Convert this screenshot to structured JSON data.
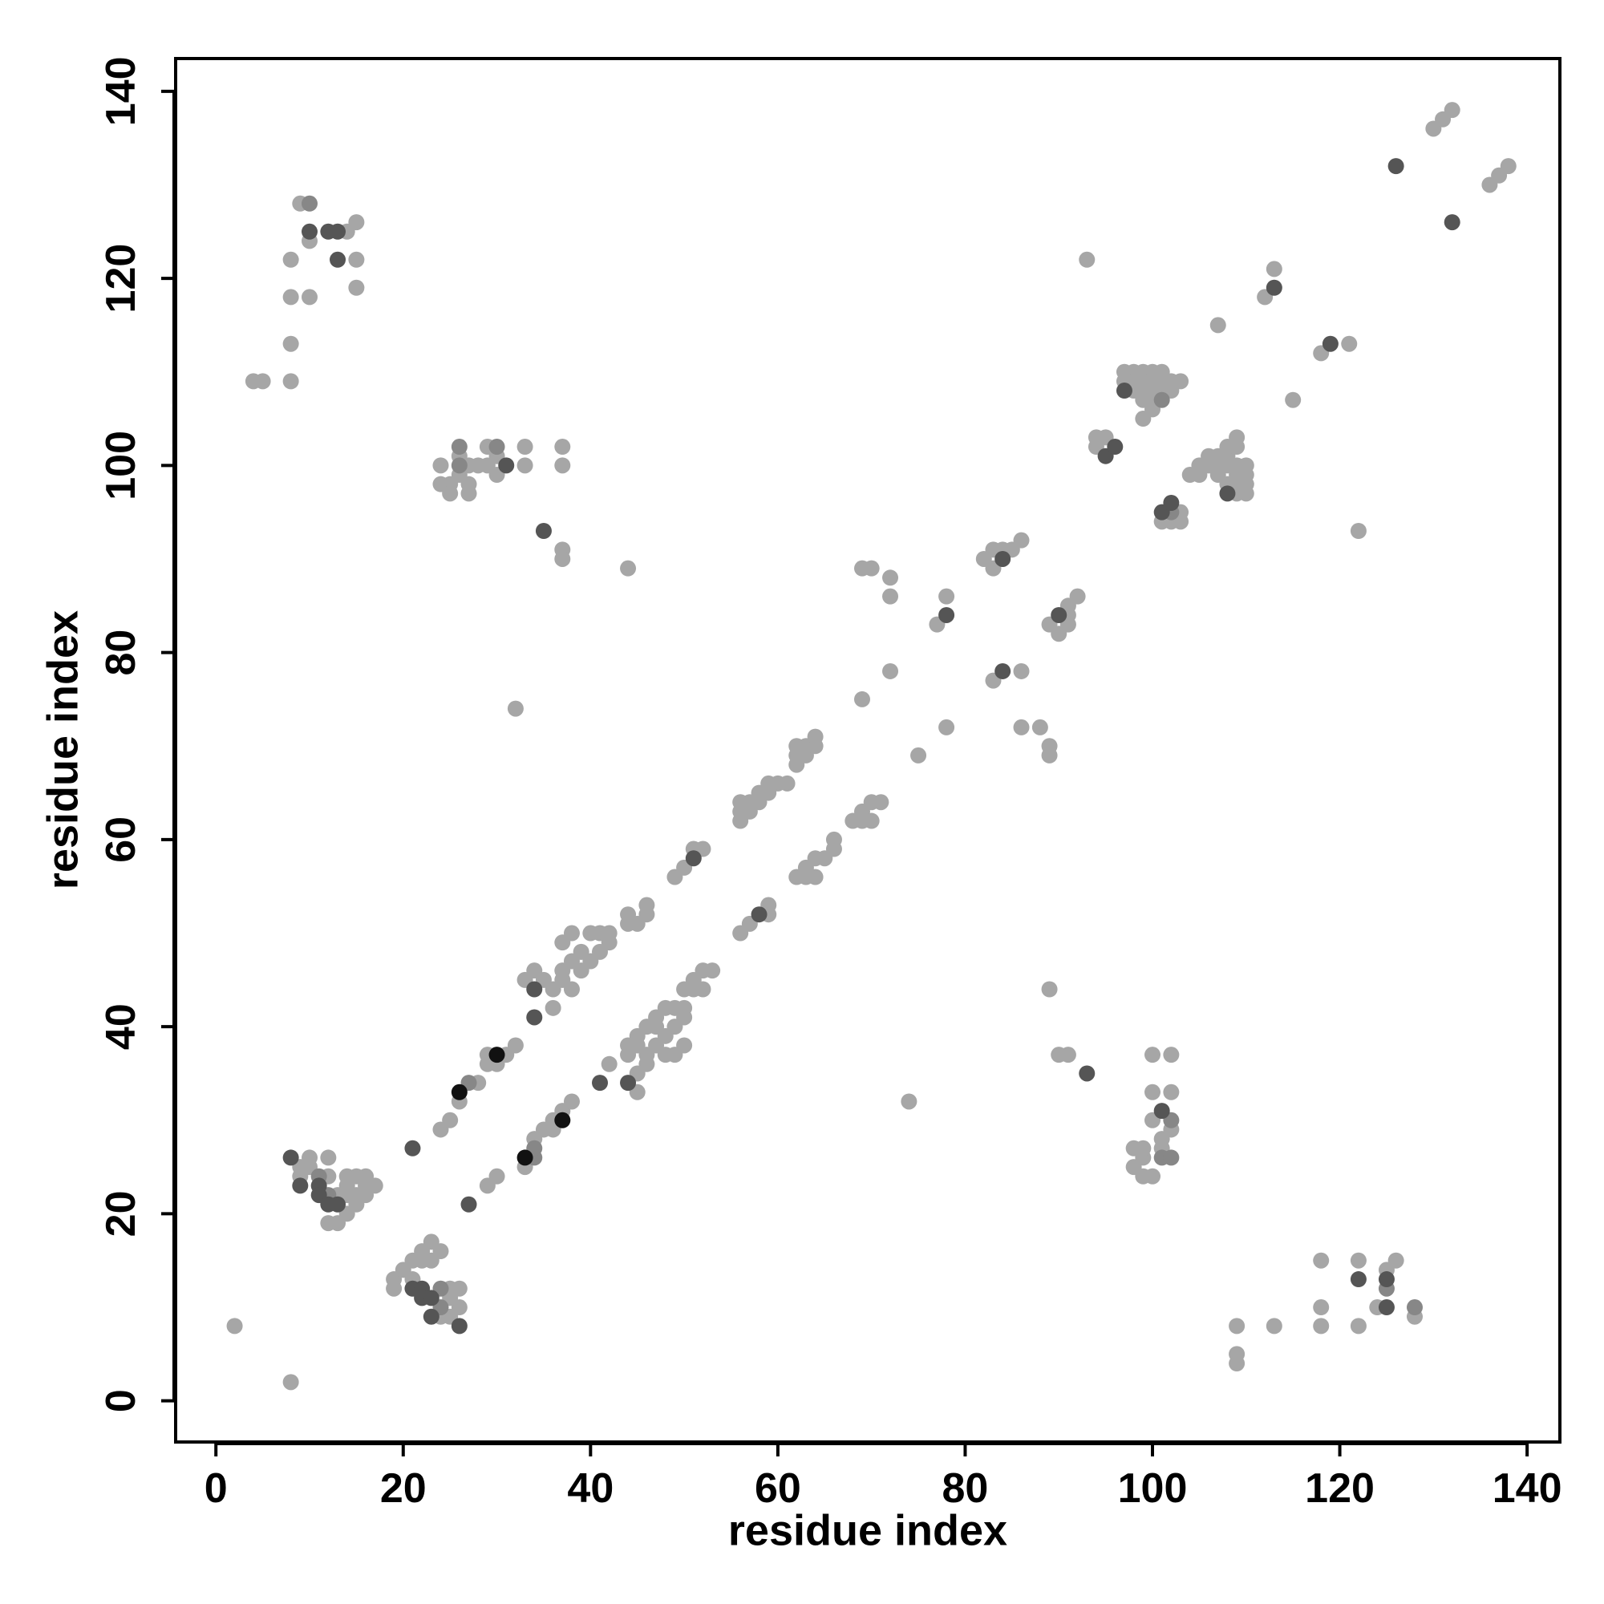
{
  "chart_data": {
    "type": "scatter",
    "x_label": "residue index",
    "y_label": "residue index",
    "xlim": [
      -4.3,
      143.5
    ],
    "ylim": [
      -4.4,
      143.5
    ],
    "xticks": [
      0,
      20,
      40,
      60,
      80,
      100,
      120,
      140
    ],
    "yticks": [
      0,
      20,
      40,
      60,
      80,
      100,
      120,
      140
    ],
    "series": [
      {
        "color": "#a6a6a6",
        "x": [
          8,
          8,
          8,
          8,
          4,
          5,
          9,
          10,
          10,
          14,
          15,
          15,
          15,
          24,
          24,
          25,
          25,
          26,
          26,
          27,
          27,
          27,
          28,
          29,
          29,
          30,
          30,
          33,
          33,
          37,
          37,
          37,
          37,
          44,
          32,
          24,
          25,
          26,
          28,
          29,
          29,
          30,
          31,
          32,
          33,
          34,
          36,
          35,
          36,
          37,
          37,
          38,
          38,
          37,
          38,
          39,
          39,
          40,
          40,
          41,
          41,
          42,
          42,
          44,
          44,
          45,
          46,
          46,
          49,
          50,
          51,
          52,
          56,
          56,
          56,
          57,
          57,
          58,
          58,
          59,
          59,
          60,
          61,
          62,
          62,
          62,
          63,
          63,
          64,
          64,
          29,
          30,
          33,
          34,
          35,
          36,
          36,
          37,
          38,
          42,
          44,
          44,
          45,
          45,
          45,
          45,
          46,
          46,
          46,
          47,
          47,
          47,
          48,
          48,
          48,
          49,
          49,
          49,
          50,
          50,
          50,
          50,
          51,
          51,
          52,
          52,
          53,
          56,
          57,
          59,
          59,
          62,
          63,
          63,
          64,
          64,
          65,
          66,
          66,
          68,
          69,
          69,
          70,
          70,
          71,
          69,
          70,
          72,
          72,
          72,
          69,
          75,
          77,
          78,
          78,
          82,
          83,
          83,
          84,
          85,
          86,
          83,
          86,
          86,
          88,
          89,
          89,
          89,
          90,
          91,
          91,
          91,
          92,
          89,
          90,
          91,
          74,
          93,
          94,
          94,
          95,
          97,
          98,
          99,
          100,
          101,
          97,
          98,
          99,
          100,
          101,
          102,
          103,
          98,
          99,
          100,
          101,
          102,
          99,
          100,
          100,
          99,
          101,
          102,
          103,
          103,
          104,
          105,
          105,
          106,
          106,
          107,
          107,
          107,
          108,
          108,
          108,
          108,
          109,
          109,
          109,
          109,
          109,
          109,
          110,
          110,
          110,
          110,
          107,
          112,
          113,
          115,
          118,
          121,
          122,
          130,
          131,
          132,
          136,
          137,
          138,
          98,
          98,
          99,
          99,
          99,
          100,
          100,
          100,
          101,
          100,
          102,
          102,
          102,
          101,
          109,
          109,
          109,
          113,
          118,
          118,
          118,
          122,
          122,
          124,
          125,
          126,
          128,
          9,
          9,
          10,
          10,
          12,
          12,
          12,
          13,
          13,
          14,
          14,
          14,
          14,
          15,
          15,
          15,
          16,
          16,
          16,
          17,
          2,
          8,
          19,
          19,
          20,
          21,
          21,
          22,
          22,
          23,
          23,
          24,
          24,
          25,
          25,
          26,
          26,
          25
        ],
        "values": [
          122,
          118,
          113,
          109,
          109,
          109,
          128,
          124,
          118,
          125,
          126,
          122,
          119,
          100,
          98,
          98,
          97,
          99,
          101,
          97,
          98,
          100,
          100,
          102,
          100,
          101,
          99,
          102,
          100,
          102,
          100,
          91,
          90,
          89,
          74,
          29,
          30,
          32,
          34,
          36,
          37,
          36,
          37,
          38,
          45,
          46,
          42,
          45,
          44,
          45,
          46,
          44,
          47,
          49,
          50,
          46,
          48,
          47,
          50,
          48,
          50,
          49,
          50,
          51,
          52,
          51,
          52,
          53,
          56,
          57,
          59,
          59,
          62,
          63,
          64,
          63,
          64,
          64,
          65,
          66,
          65,
          66,
          66,
          68,
          69,
          70,
          69,
          70,
          70,
          71,
          23,
          24,
          25,
          28,
          29,
          30,
          29,
          31,
          32,
          36,
          37,
          38,
          33,
          35,
          38,
          39,
          36,
          37,
          40,
          38,
          40,
          41,
          39,
          37,
          42,
          40,
          42,
          37,
          38,
          41,
          42,
          44,
          44,
          45,
          44,
          46,
          46,
          50,
          51,
          53,
          52,
          56,
          56,
          57,
          56,
          58,
          58,
          59,
          60,
          62,
          62,
          63,
          62,
          64,
          64,
          89,
          89,
          88,
          86,
          78,
          75,
          69,
          83,
          86,
          72,
          90,
          91,
          89,
          91,
          91,
          92,
          77,
          78,
          72,
          72,
          70,
          69,
          83,
          82,
          83,
          84,
          85,
          86,
          44,
          37,
          37,
          32,
          122,
          102,
          103,
          103,
          110,
          110,
          110,
          110,
          110,
          109,
          109,
          109,
          109,
          109,
          109,
          109,
          108,
          108,
          108,
          108,
          108,
          107,
          107,
          106,
          105,
          94,
          94,
          94,
          95,
          99,
          99,
          100,
          100,
          101,
          100,
          101,
          99,
          101,
          102,
          100,
          98,
          100,
          99,
          98,
          97,
          103,
          102,
          100,
          99,
          98,
          97,
          115,
          118,
          121,
          107,
          112,
          113,
          93,
          136,
          137,
          138,
          130,
          131,
          132,
          27,
          25,
          26,
          24,
          27,
          30,
          37,
          33,
          28,
          24,
          37,
          33,
          29,
          27,
          8,
          5,
          4,
          8,
          15,
          10,
          8,
          15,
          8,
          10,
          14,
          15,
          9,
          25,
          24,
          26,
          25,
          26,
          24,
          19,
          22,
          19,
          24,
          23,
          20,
          22,
          21,
          22,
          24,
          24,
          22,
          23,
          23,
          8,
          2,
          13,
          12,
          14,
          15,
          13,
          15,
          16,
          17,
          15,
          16,
          9,
          12,
          9,
          12,
          10,
          11
        ]
      },
      {
        "color": "#878787",
        "x": [
          10,
          26,
          26,
          30,
          27,
          34,
          34,
          101,
          102,
          101,
          102,
          102,
          125,
          128,
          11,
          12,
          24,
          24
        ],
        "values": [
          128,
          102,
          100,
          102,
          34,
          26,
          27,
          107,
          95,
          26,
          30,
          26,
          12,
          10,
          24,
          22,
          12,
          10
        ]
      },
      {
        "color": "#555555",
        "x": [
          10,
          12,
          13,
          13,
          31,
          35,
          21,
          34,
          34,
          51,
          27,
          41,
          44,
          58,
          78,
          84,
          84,
          90,
          93,
          95,
          96,
          97,
          101,
          102,
          108,
          113,
          119,
          126,
          132,
          101,
          122,
          125,
          125,
          8,
          9,
          11,
          11,
          12,
          13,
          21,
          22,
          22,
          23,
          23,
          26
        ],
        "values": [
          125,
          125,
          125,
          122,
          100,
          93,
          27,
          44,
          41,
          58,
          21,
          34,
          34,
          52,
          84,
          90,
          78,
          84,
          35,
          101,
          102,
          108,
          95,
          96,
          97,
          119,
          113,
          132,
          126,
          31,
          13,
          13,
          10,
          26,
          23,
          23,
          22,
          21,
          21,
          12,
          12,
          11,
          11,
          9,
          8
        ]
      },
      {
        "color": "#111111",
        "x": [
          26,
          30,
          33,
          37
        ],
        "values": [
          33,
          37,
          26,
          30
        ]
      }
    ]
  }
}
